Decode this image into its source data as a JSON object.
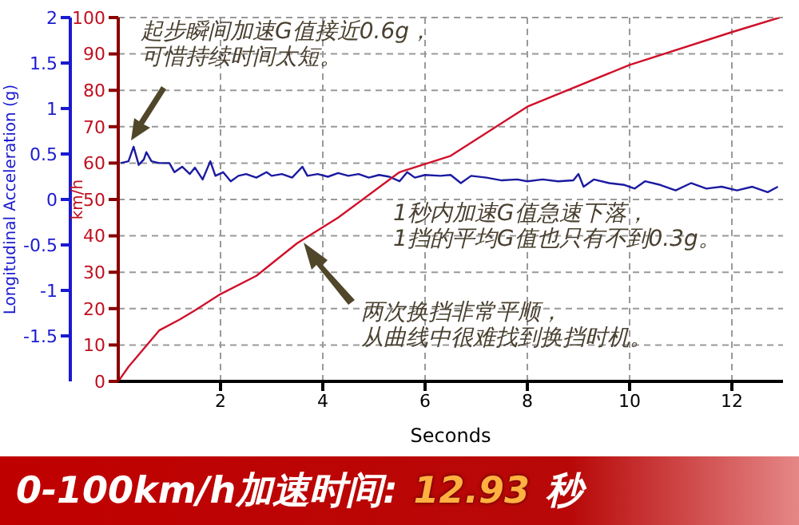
{
  "chart_data": {
    "type": "line",
    "xlabel": "Seconds",
    "ylabel": "Longitudinal Acceleration (g)",
    "y2label": "km/h",
    "xlim": [
      0,
      13
    ],
    "xticks": [
      2,
      4,
      6,
      8,
      10,
      12
    ],
    "ylim": [
      -2,
      2
    ],
    "yticks": [
      -1.5,
      -1,
      -0.5,
      0,
      0.5,
      1,
      1.5,
      2
    ],
    "y2lim": [
      0,
      100
    ],
    "y2ticks": [
      0,
      10,
      20,
      30,
      40,
      50,
      60,
      70,
      80,
      90,
      100
    ],
    "grid": true,
    "marker": "none",
    "line_style": "solid",
    "series": [
      {
        "color": "#1a1aa0",
        "x": [
          0.05,
          0.2,
          0.3,
          0.4,
          0.5,
          0.55,
          0.65,
          0.8,
          1.0,
          1.1,
          1.25,
          1.4,
          1.5,
          1.65,
          1.8,
          1.9,
          2.05,
          2.2,
          2.35,
          2.5,
          2.7,
          2.9,
          3.0,
          3.2,
          3.4,
          3.6,
          3.7,
          3.9,
          4.1,
          4.3,
          4.5,
          4.7,
          4.9,
          5.1,
          5.3,
          5.5,
          5.65,
          5.8,
          6.0,
          6.3,
          6.5,
          6.7,
          6.9,
          7.2,
          7.5,
          7.8,
          8.0,
          8.3,
          8.6,
          8.9,
          9.0,
          9.1,
          9.3,
          9.6,
          9.9,
          10.1,
          10.3,
          10.6,
          10.9,
          11.2,
          11.5,
          11.8,
          12.1,
          12.4,
          12.7,
          12.9
        ],
        "values": [
          0.4,
          0.42,
          0.58,
          0.38,
          0.44,
          0.52,
          0.42,
          0.4,
          0.4,
          0.3,
          0.36,
          0.28,
          0.35,
          0.22,
          0.42,
          0.26,
          0.3,
          0.2,
          0.26,
          0.28,
          0.24,
          0.3,
          0.26,
          0.28,
          0.24,
          0.36,
          0.26,
          0.28,
          0.25,
          0.29,
          0.26,
          0.28,
          0.24,
          0.27,
          0.25,
          0.2,
          0.3,
          0.24,
          0.27,
          0.26,
          0.27,
          0.18,
          0.26,
          0.24,
          0.21,
          0.22,
          0.2,
          0.22,
          0.2,
          0.21,
          0.28,
          0.14,
          0.22,
          0.18,
          0.16,
          0.12,
          0.2,
          0.16,
          0.1,
          0.18,
          0.12,
          0.14,
          0.1,
          0.14,
          0.08,
          0.14
        ]
      },
      {
        "color": "#d0102a",
        "axis": "y2",
        "x": [
          0,
          0.2,
          0.5,
          0.8,
          1.2,
          1.5,
          2.0,
          2.7,
          3.5,
          4.3,
          5.5,
          6.5,
          8,
          10,
          12,
          12.93
        ],
        "values": [
          0,
          4,
          9,
          14,
          17,
          19.5,
          24,
          29,
          38,
          45,
          57.5,
          62,
          75.5,
          87,
          96,
          100
        ]
      }
    ],
    "annotations": [
      "起步瞬间加速G值接近0.6g，",
      "可惜持续时间太短。",
      "1秒内加速G值急速下落，",
      "1挡的平均G值也只有不到0.3g。",
      "两次换挡非常平顺，",
      "从曲线中很难找到换挡时机。",
      "0-100km/h加速时间:",
      "12.93",
      "秒"
    ]
  }
}
